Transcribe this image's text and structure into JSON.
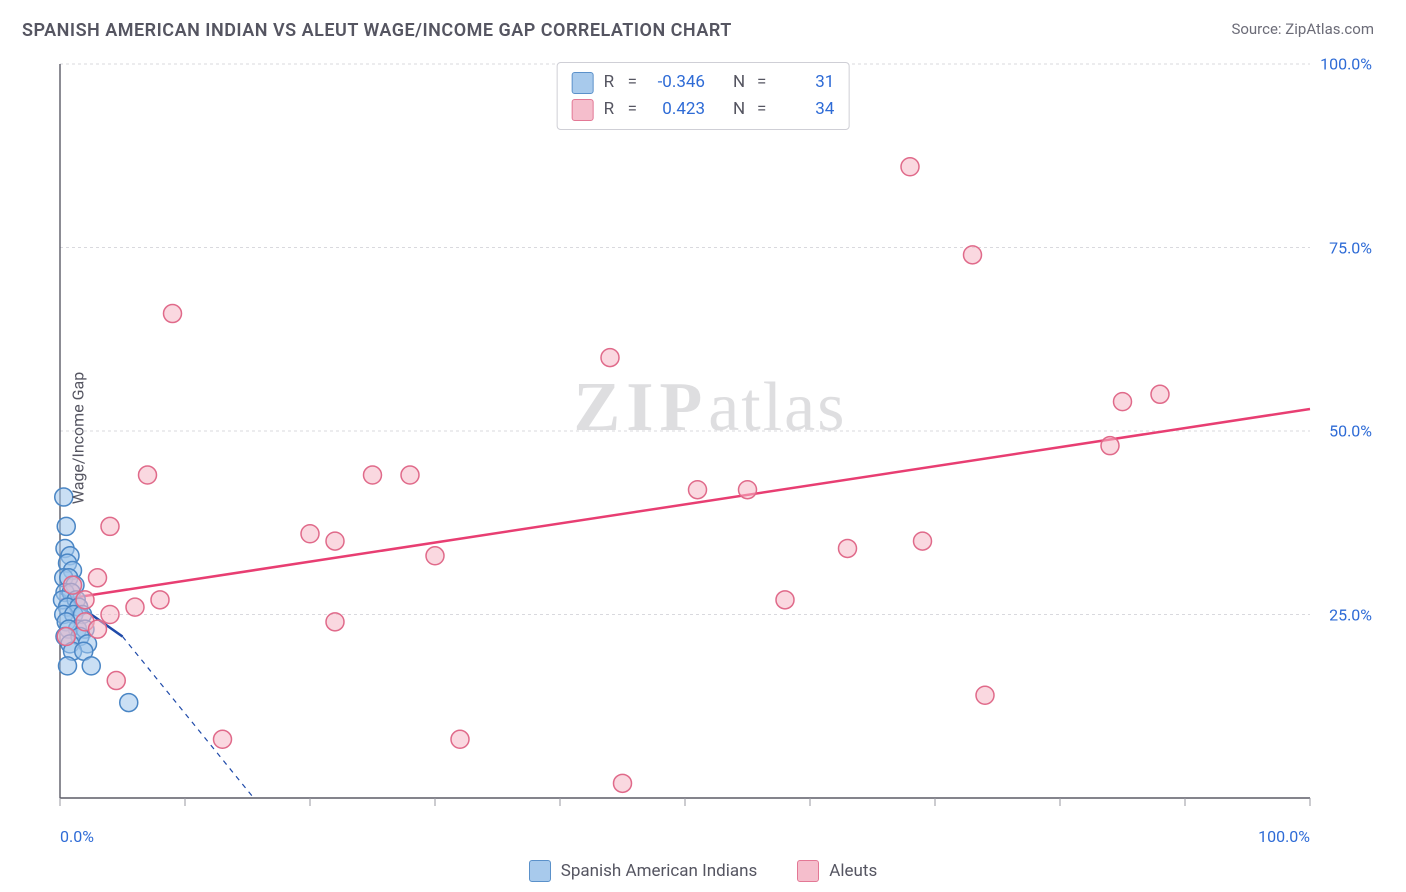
{
  "header": {
    "title": "SPANISH AMERICAN INDIAN VS ALEUT WAGE/INCOME GAP CORRELATION CHART",
    "source_prefix": "Source: ",
    "source_name": "ZipAtlas.com"
  },
  "watermark": {
    "zip": "ZIP",
    "atlas": "atlas"
  },
  "chart": {
    "type": "scatter",
    "background_color": "#ffffff",
    "border_color": "#5b5b66",
    "grid_color": "#d9d9de",
    "tick_color": "#9a9aa2",
    "tick_label_color": "#2e6bd6",
    "ylabel": "Wage/Income Gap",
    "ylabel_fontsize": 16,
    "xlim": [
      0,
      100
    ],
    "ylim": [
      0,
      100
    ],
    "xticks": [
      0,
      10,
      20,
      30,
      40,
      50,
      60,
      70,
      80,
      90,
      100
    ],
    "yticks_major": [
      25,
      50,
      75,
      100
    ],
    "xtick_labels": {
      "0": "0.0%",
      "100": "100.0%"
    },
    "ytick_labels": {
      "25": "25.0%",
      "50": "50.0%",
      "75": "75.0%",
      "100": "100.0%"
    },
    "marker_radius": 9,
    "marker_stroke_width": 1.5,
    "trend_line_width": 2.5,
    "series": [
      {
        "id": "spanish",
        "label": "Spanish American Indians",
        "fill_color": "#9fc5eb",
        "stroke_color": "#4a86c5",
        "fill_opacity": 0.55,
        "trend_color": "#1f4aa9",
        "trend": {
          "x1": 0,
          "y1": 28,
          "x2": 5,
          "y2": 22,
          "dash_x2": 15.5,
          "dash_y2": 0
        },
        "points": [
          [
            0.3,
            41
          ],
          [
            0.5,
            37
          ],
          [
            0.4,
            34
          ],
          [
            0.8,
            33
          ],
          [
            0.6,
            32
          ],
          [
            1.0,
            31
          ],
          [
            0.3,
            30
          ],
          [
            0.7,
            30
          ],
          [
            1.2,
            29
          ],
          [
            0.4,
            28
          ],
          [
            0.9,
            28
          ],
          [
            0.2,
            27
          ],
          [
            1.3,
            27
          ],
          [
            0.6,
            26
          ],
          [
            1.5,
            26
          ],
          [
            0.3,
            25
          ],
          [
            1.1,
            25
          ],
          [
            1.8,
            25
          ],
          [
            0.5,
            24
          ],
          [
            1.4,
            23
          ],
          [
            0.7,
            23
          ],
          [
            2.0,
            23
          ],
          [
            0.4,
            22
          ],
          [
            1.6,
            22
          ],
          [
            0.8,
            21
          ],
          [
            2.2,
            21
          ],
          [
            1.0,
            20
          ],
          [
            1.9,
            20
          ],
          [
            0.6,
            18
          ],
          [
            2.5,
            18
          ],
          [
            5.5,
            13
          ]
        ]
      },
      {
        "id": "aleuts",
        "label": "Aleuts",
        "fill_color": "#f5b8c7",
        "stroke_color": "#e06a8a",
        "fill_opacity": 0.55,
        "trend_color": "#e83e72",
        "trend": {
          "x1": 0,
          "y1": 27,
          "x2": 100,
          "y2": 53
        },
        "points": [
          [
            9,
            66
          ],
          [
            44,
            60
          ],
          [
            68,
            86
          ],
          [
            73,
            74
          ],
          [
            85,
            54
          ],
          [
            88,
            55
          ],
          [
            84,
            48
          ],
          [
            51,
            42
          ],
          [
            55,
            42
          ],
          [
            63,
            34
          ],
          [
            69,
            35
          ],
          [
            74,
            14
          ],
          [
            58,
            27
          ],
          [
            45,
            2
          ],
          [
            32,
            8
          ],
          [
            13,
            8
          ],
          [
            22,
            24
          ],
          [
            22,
            35
          ],
          [
            20,
            36
          ],
          [
            30,
            33
          ],
          [
            28,
            44
          ],
          [
            25,
            44
          ],
          [
            7,
            44
          ],
          [
            4,
            37
          ],
          [
            2,
            27
          ],
          [
            4,
            25
          ],
          [
            6,
            26
          ],
          [
            8,
            27
          ],
          [
            2,
            24
          ],
          [
            3,
            30
          ],
          [
            1,
            29
          ],
          [
            4.5,
            16
          ],
          [
            0.5,
            22
          ],
          [
            3,
            23
          ]
        ]
      }
    ],
    "stats": [
      {
        "series": "spanish",
        "R": "-0.346",
        "N": "31"
      },
      {
        "series": "aleuts",
        "R": "0.423",
        "N": "34"
      }
    ]
  }
}
